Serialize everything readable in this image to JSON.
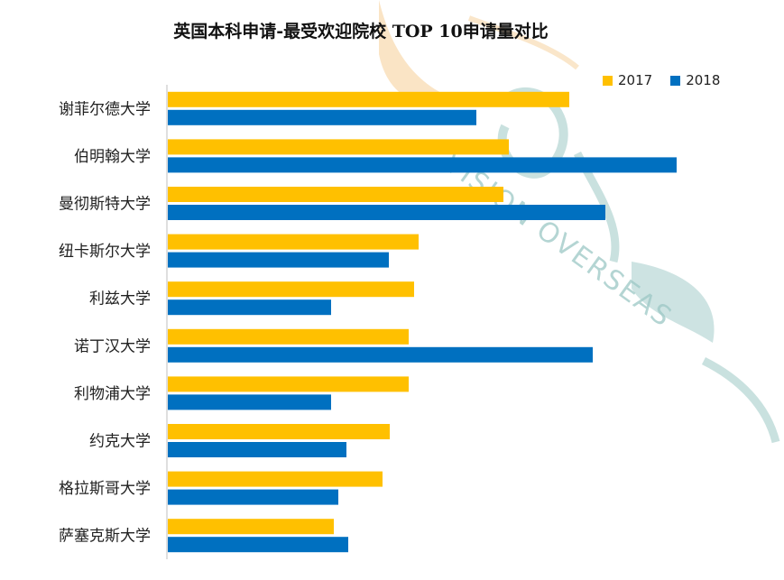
{
  "chart_data": {
    "type": "bar",
    "orientation": "horizontal",
    "title": "英国本科申请-最受欢迎院校 TOP 10申请量对比",
    "categories": [
      "谢菲尔德大学",
      "伯明翰大学",
      "曼彻斯特大学",
      "纽卡斯尔大学",
      "利兹大学",
      "诺丁汉大学",
      "利物浦大学",
      "约克大学",
      "格拉斯哥大学",
      "萨塞克斯大学"
    ],
    "series": [
      {
        "name": "2017",
        "color": "#FFC000",
        "values": [
          445,
          378,
          372,
          278,
          273,
          267,
          267,
          246,
          238,
          184
        ]
      },
      {
        "name": "2018",
        "color": "#0070C0",
        "values": [
          342,
          564,
          485,
          245,
          181,
          471,
          181,
          198,
          189,
          200
        ]
      }
    ],
    "xlim": [
      0,
      600
    ],
    "grid": false,
    "legend_position": "top-right",
    "watermark": "VISION OVERSEAS"
  }
}
